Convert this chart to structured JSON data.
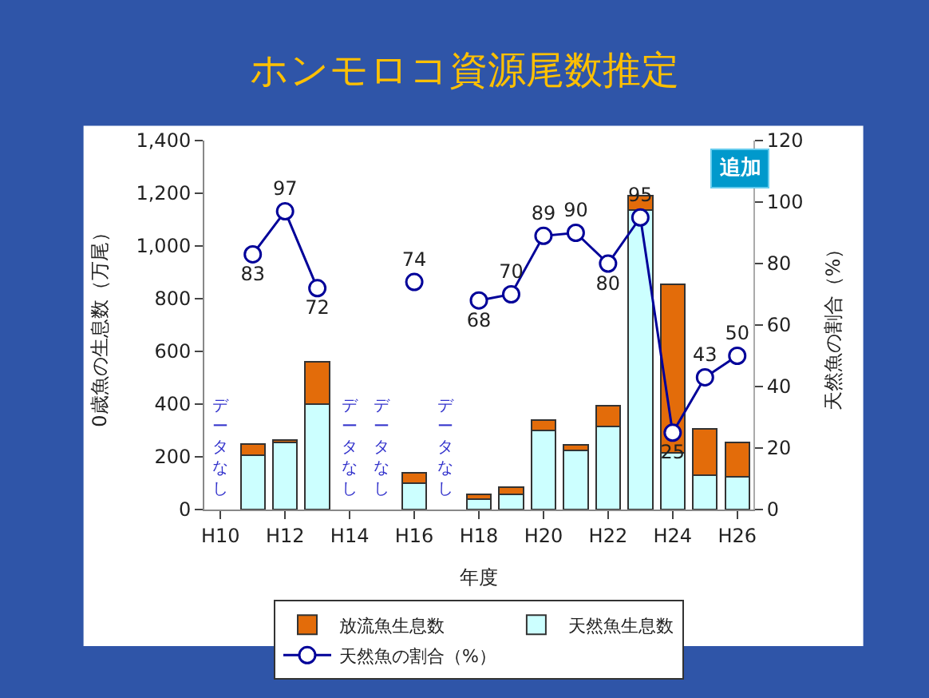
{
  "chart_data": {
    "type": "bar",
    "title": "ホンモロコ資源尾数推定",
    "xlabel": "年度",
    "ylabel": "0歳魚の生息数（万尾）",
    "y2label": "天然魚の割合（%）",
    "categories": [
      "H10",
      null,
      "H12",
      null,
      "H14",
      null,
      "H16",
      null,
      "H18",
      null,
      "H20",
      null,
      "H22",
      null,
      "H24",
      null,
      "H26"
    ],
    "stacked": true,
    "series": [
      {
        "name": "天然魚生息数",
        "color": "#ccffff",
        "values": [
          null,
          205,
          255,
          400,
          null,
          null,
          100,
          null,
          38,
          58,
          300,
          225,
          315,
          1135,
          215,
          130,
          125
        ]
      },
      {
        "name": "放流魚生息数",
        "color": "#e36c0a",
        "values": [
          null,
          45,
          10,
          160,
          null,
          null,
          40,
          null,
          20,
          27,
          40,
          20,
          80,
          55,
          640,
          175,
          130
        ]
      },
      {
        "name": "天然魚の割合（%）",
        "type": "line",
        "axis": "y2",
        "color": "#000099",
        "marker": "circle",
        "values": [
          null,
          83,
          97,
          72,
          null,
          null,
          74,
          null,
          68,
          70,
          89,
          90,
          80,
          95,
          25,
          43,
          50
        ],
        "value_labels": [
          null,
          "83",
          "97",
          "72",
          null,
          null,
          "74",
          null,
          "68",
          "70",
          "89",
          "90",
          "80",
          "95",
          "25",
          "43",
          "50"
        ]
      }
    ],
    "ylim": [
      0,
      1400
    ],
    "yticks": [
      0,
      200,
      400,
      600,
      800,
      {
        "value": 1000,
        "label": "1,000"
      },
      {
        "value": 1200,
        "label": "1,200"
      },
      {
        "value": 1400,
        "label": "1,400"
      }
    ],
    "y2lim": [
      0,
      120
    ],
    "y2ticks": [
      0,
      20,
      40,
      60,
      80,
      100,
      120
    ],
    "legend": "bottom",
    "annotations": [
      "データなし",
      "データなし",
      "データなし",
      "データなし",
      "追加"
    ]
  }
}
